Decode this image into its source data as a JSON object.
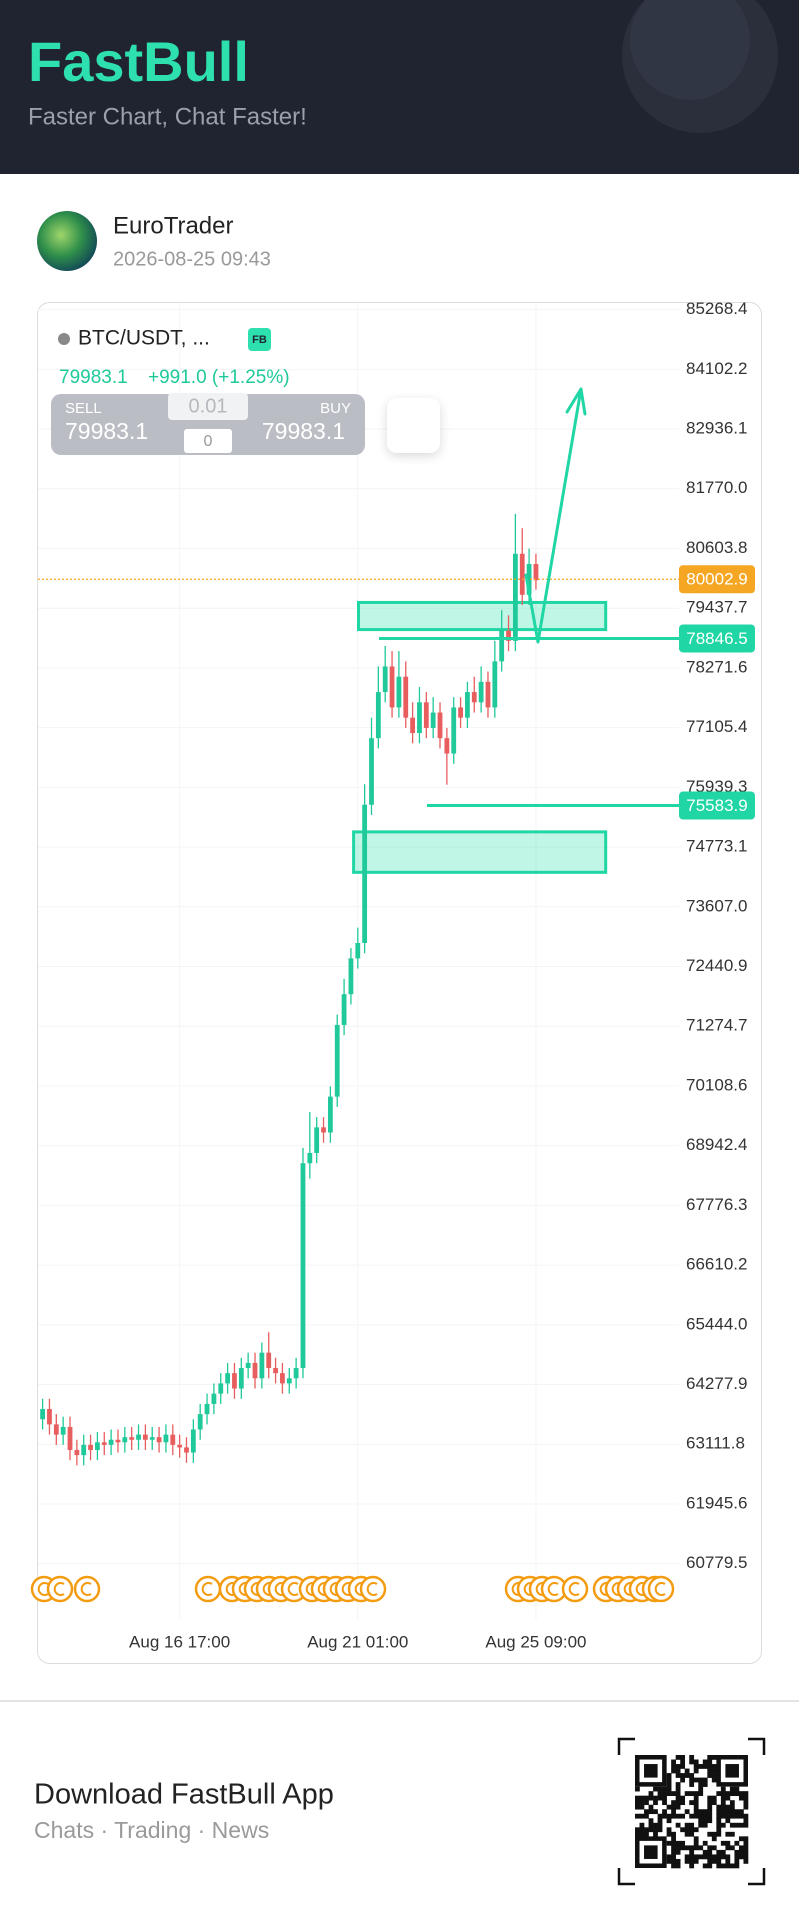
{
  "header": {
    "title": "FastBull",
    "subtitle": "Faster Chart, Chat Faster!"
  },
  "post": {
    "author": "EuroTrader",
    "time": "2026-08-25 09:43"
  },
  "chart_data": {
    "type": "candlestick",
    "symbol": "BTC/USDT, ...",
    "badge": "FB",
    "quote": {
      "last": 79983.1,
      "change": "+991.0 (+1.25%)",
      "sell_label": "SELL",
      "sell": 79983.1,
      "buy_label": "BUY",
      "buy": 79983.1,
      "lot": 0.01,
      "qty": 0
    },
    "categories": [
      null,
      null,
      null,
      null,
      null,
      null,
      null,
      null,
      null,
      null,
      null,
      null,
      null,
      null,
      null,
      null,
      null,
      null,
      null,
      null,
      "Aug 16 17:00",
      null,
      null,
      null,
      null,
      null,
      null,
      null,
      null,
      null,
      null,
      null,
      null,
      null,
      null,
      null,
      null,
      null,
      null,
      null,
      null,
      null,
      null,
      null,
      null,
      null,
      "Aug 21 01:00",
      null,
      null,
      null,
      null,
      null,
      null,
      null,
      null,
      null,
      null,
      null,
      null,
      null,
      null,
      null,
      null,
      null,
      null,
      null,
      null,
      null,
      null,
      null,
      null,
      null,
      "Aug 25 09:00"
    ],
    "open": [
      63600,
      63800,
      63500,
      63300,
      63450,
      63000,
      62900,
      63100,
      63000,
      63150,
      63100,
      63200,
      63150,
      63250,
      63200,
      63300,
      63200,
      63250,
      63150,
      63300,
      63100,
      63050,
      62950,
      63400,
      63700,
      63900,
      64100,
      64300,
      64500,
      64200,
      64600,
      64700,
      64400,
      64900,
      64600,
      64500,
      64300,
      64400,
      64600,
      68600,
      68800,
      69300,
      69200,
      69900,
      71300,
      71900,
      72600,
      72900,
      75600,
      76900,
      77800,
      78300,
      77500,
      78100,
      77300,
      77000,
      77600,
      77100,
      77400,
      76900,
      76600,
      77500,
      77300,
      77800,
      77600,
      78000,
      77500,
      78400,
      79000,
      78800,
      80500,
      79700,
      80300
    ],
    "high": [
      64000,
      64000,
      63700,
      63650,
      63650,
      63200,
      63300,
      63300,
      63350,
      63350,
      63400,
      63400,
      63450,
      63450,
      63500,
      63500,
      63450,
      63450,
      63500,
      63500,
      63300,
      63250,
      63600,
      63900,
      64100,
      64300,
      64500,
      64700,
      64700,
      64800,
      64900,
      64900,
      65100,
      65300,
      64800,
      64700,
      64600,
      64800,
      68900,
      69600,
      69500,
      69500,
      70100,
      71500,
      72200,
      72800,
      73200,
      76000,
      77300,
      78300,
      78700,
      78600,
      78600,
      78400,
      77600,
      77900,
      77800,
      77700,
      77600,
      77100,
      77700,
      77700,
      78000,
      78100,
      78300,
      78200,
      78800,
      79400,
      79300,
      81280,
      81000,
      80600,
      80500
    ],
    "low": [
      63400,
      63300,
      63100,
      63100,
      62800,
      62700,
      62700,
      62800,
      62800,
      62900,
      62900,
      62950,
      62950,
      63000,
      63000,
      63000,
      63000,
      62950,
      62950,
      62900,
      62850,
      62750,
      62750,
      63200,
      63500,
      63700,
      63900,
      64100,
      64000,
      64000,
      64400,
      64200,
      64200,
      64400,
      64300,
      64100,
      64100,
      64200,
      64400,
      68300,
      68600,
      69000,
      69000,
      69700,
      71100,
      71700,
      72400,
      72700,
      75400,
      76700,
      77600,
      77300,
      77300,
      77100,
      76800,
      76800,
      76900,
      76900,
      76700,
      75990,
      76400,
      77100,
      77100,
      77400,
      77400,
      77300,
      77300,
      78200,
      78600,
      78600,
      79500,
      79500,
      79800
    ],
    "close": [
      63800,
      63500,
      63300,
      63450,
      63000,
      62900,
      63100,
      63000,
      63150,
      63100,
      63200,
      63150,
      63250,
      63200,
      63300,
      63200,
      63250,
      63150,
      63300,
      63100,
      63050,
      62950,
      63400,
      63700,
      63900,
      64100,
      64300,
      64500,
      64200,
      64600,
      64700,
      64400,
      64900,
      64600,
      64500,
      64300,
      64400,
      64600,
      68600,
      68800,
      69300,
      69200,
      69900,
      71300,
      71900,
      72600,
      72900,
      75600,
      76900,
      77800,
      78300,
      77500,
      78100,
      77300,
      77000,
      77600,
      77100,
      77400,
      76900,
      76600,
      77500,
      77300,
      77800,
      77600,
      78000,
      77500,
      78400,
      79000,
      78800,
      80500,
      79700,
      80300,
      79983.1
    ],
    "up_color": "#1fc99a",
    "down_color": "#e85d5d",
    "ylim": [
      59680,
      85417
    ],
    "yticks": [
      85268.4,
      84102.2,
      82936.1,
      {
        "value": 81770,
        "label": "81770.0"
      },
      80603.8,
      79437.7,
      78271.6,
      77105.4,
      75939.3,
      74773.1,
      {
        "value": 73607,
        "label": "73607.0"
      },
      72440.9,
      71274.7,
      70108.6,
      68942.4,
      67776.3,
      66610.2,
      {
        "value": 65444,
        "label": "65444.0"
      },
      64277.9,
      63111.8,
      61945.6,
      60779.5
    ],
    "grid": true,
    "price_lines": [
      {
        "value": 80002.9,
        "color": "#f5a623",
        "style": "dotted"
      },
      {
        "value": 78846.5,
        "color": "#1fd6a4",
        "style": "solid"
      },
      {
        "value": 75583.9,
        "color": "#1fd6a4",
        "style": "solid"
      }
    ],
    "zones": [
      {
        "top": 79550,
        "bottom": 79020
      },
      {
        "top": 75070,
        "bottom": 74280
      }
    ]
  },
  "footer": {
    "title": "Download FastBull App",
    "subtitle": "Chats · Trading · News"
  }
}
